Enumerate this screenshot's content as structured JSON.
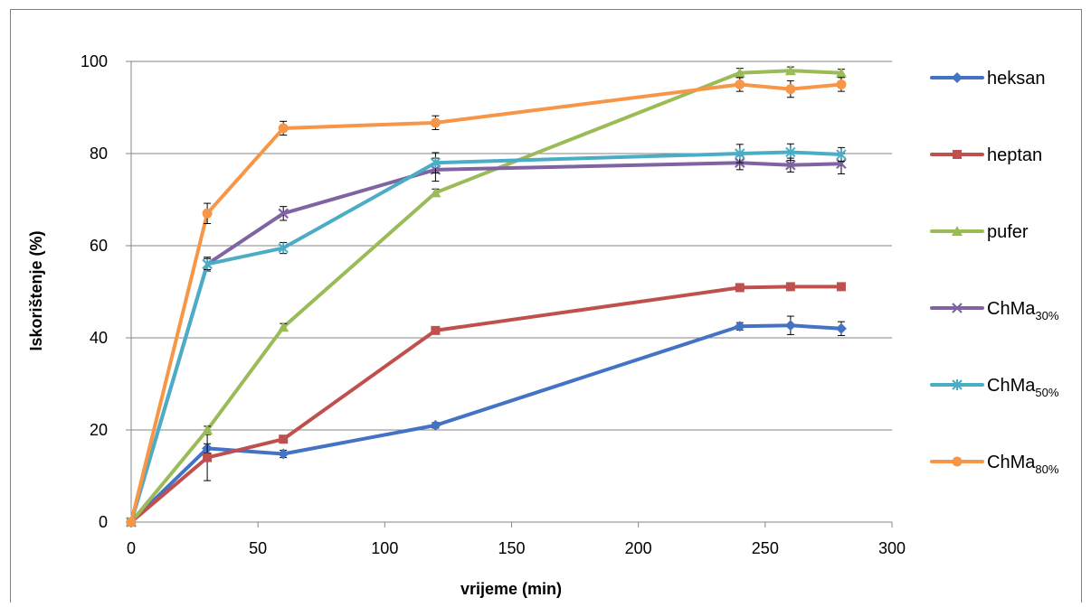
{
  "chart_data": {
    "type": "line",
    "title": "",
    "xlabel": "vrijeme (min)",
    "ylabel": "Iskorištenje (%)",
    "xlim": [
      0,
      300
    ],
    "ylim": [
      0,
      100
    ],
    "xticks": [
      0,
      50,
      100,
      150,
      200,
      250,
      300
    ],
    "yticks": [
      0,
      20,
      40,
      60,
      80,
      100
    ],
    "grid": "horizontal",
    "legend_position": "right",
    "series": [
      {
        "name": "heksan",
        "name_sub": "",
        "color": "#4472C4",
        "marker": "diamond",
        "points": [
          [
            0,
            0
          ],
          [
            30,
            16
          ],
          [
            60,
            14.8
          ],
          [
            120,
            21
          ],
          [
            240,
            42.5
          ],
          [
            260,
            42.7
          ],
          [
            280,
            42
          ]
        ],
        "errors": [
          0,
          1,
          0.8,
          0.6,
          0.8,
          2,
          1.5
        ]
      },
      {
        "name": "heptan",
        "name_sub": "",
        "color": "#C0504D",
        "marker": "square",
        "points": [
          [
            0,
            0
          ],
          [
            30,
            14
          ],
          [
            60,
            18
          ],
          [
            120,
            41.6
          ],
          [
            240,
            50.9
          ],
          [
            260,
            51.1
          ],
          [
            280,
            51.1
          ]
        ],
        "errors": [
          0,
          5,
          0.8,
          0.8,
          0.6,
          0.6,
          0.6
        ]
      },
      {
        "name": "pufer",
        "name_sub": "",
        "color": "#9BBB59",
        "marker": "triangle",
        "points": [
          [
            0,
            0
          ],
          [
            30,
            20
          ],
          [
            60,
            42.3
          ],
          [
            120,
            71.5
          ],
          [
            240,
            97.5
          ],
          [
            260,
            98
          ],
          [
            280,
            97.5
          ]
        ],
        "errors": [
          0,
          0.8,
          0.8,
          0.8,
          1,
          0.8,
          0.8
        ]
      },
      {
        "name": "ChMa",
        "name_sub": "30%",
        "color": "#8064A2",
        "marker": "x",
        "points": [
          [
            0,
            0
          ],
          [
            30,
            56
          ],
          [
            60,
            67
          ],
          [
            120,
            76.5
          ],
          [
            240,
            78
          ],
          [
            260,
            77.5
          ],
          [
            280,
            77.8
          ]
        ],
        "errors": [
          0,
          1.5,
          1.5,
          2.5,
          1.5,
          1.5,
          2.2
        ]
      },
      {
        "name": "ChMa",
        "name_sub": "50%",
        "color": "#4BACC6",
        "marker": "star",
        "points": [
          [
            0,
            0
          ],
          [
            30,
            56
          ],
          [
            60,
            59.5
          ],
          [
            120,
            78
          ],
          [
            240,
            80
          ],
          [
            260,
            80.3
          ],
          [
            280,
            79.8
          ]
        ],
        "errors": [
          0,
          1.2,
          1.2,
          2.2,
          2,
          1.8,
          1.5
        ]
      },
      {
        "name": "ChMa",
        "name_sub": "80%",
        "color": "#F79646",
        "marker": "circle",
        "points": [
          [
            0,
            0
          ],
          [
            30,
            67
          ],
          [
            60,
            85.5
          ],
          [
            120,
            86.7
          ],
          [
            240,
            95
          ],
          [
            260,
            94
          ],
          [
            280,
            95
          ]
        ],
        "errors": [
          0,
          2.2,
          1.5,
          1.5,
          1.5,
          1.8,
          1.5
        ]
      }
    ]
  }
}
